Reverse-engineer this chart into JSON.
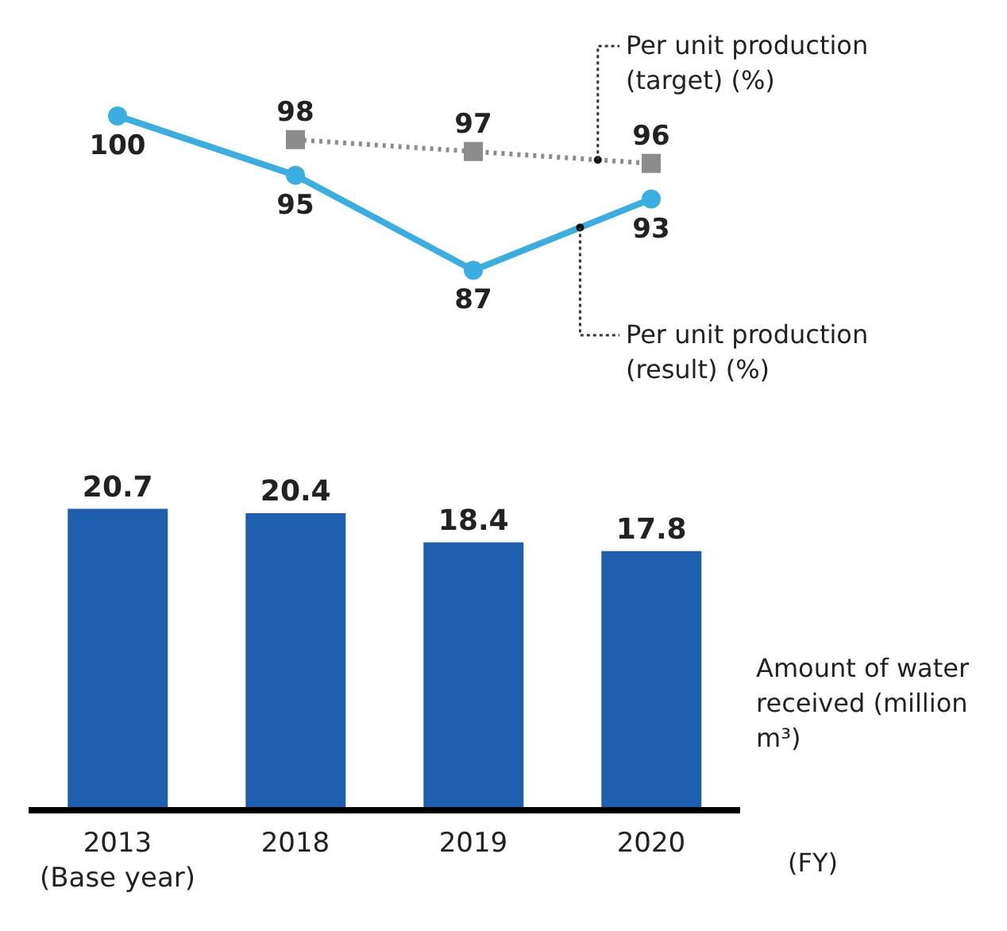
{
  "chart_data": [
    {
      "type": "line",
      "categories": [
        null,
        null,
        null,
        null
      ],
      "tick_labels": false,
      "data_labels": true,
      "series": [
        {
          "name": "Per unit production (target) (%)",
          "color": "#8c8c8c",
          "values": [
            null,
            98,
            97,
            96
          ],
          "marker": "square",
          "line_style": "dotted"
        },
        {
          "name": "Per unit production (result) (%)",
          "color": "#3aaee0",
          "values": [
            100,
            95,
            87,
            93
          ],
          "marker": "circle",
          "line_style": "solid"
        }
      ]
    },
    {
      "type": "bar",
      "categories": [
        "2013 (Base year)",
        "2018",
        "2019",
        "2020"
      ],
      "xlabel": "(FY)",
      "tick_labels": "x",
      "data_labels": true,
      "series": [
        {
          "name": "Amount of water received (million m³)",
          "color": "#1f5fb0",
          "values": [
            20.7,
            20.4,
            18.4,
            17.8
          ]
        }
      ]
    }
  ]
}
